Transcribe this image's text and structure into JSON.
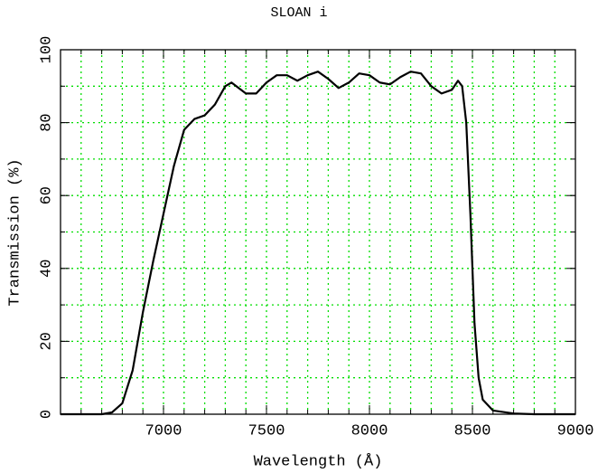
{
  "chart_data": {
    "type": "line",
    "title": "SLOAN i",
    "x_label": "Wavelength (Å)",
    "y_label": "Transmission (%)",
    "x": [
      6500,
      6700,
      6750,
      6800,
      6850,
      6900,
      6950,
      7000,
      7050,
      7100,
      7150,
      7200,
      7250,
      7300,
      7330,
      7400,
      7450,
      7500,
      7550,
      7600,
      7650,
      7700,
      7750,
      7800,
      7850,
      7900,
      7950,
      8000,
      8050,
      8100,
      8150,
      8200,
      8250,
      8300,
      8350,
      8400,
      8430,
      8450,
      8470,
      8490,
      8510,
      8530,
      8550,
      8600,
      8700,
      8800,
      9000
    ],
    "series": [
      {
        "name": "SLOAN i",
        "color": "#000000",
        "values": [
          0,
          0,
          0.5,
          3,
          12,
          28,
          42,
          55,
          68,
          78,
          81,
          82,
          85,
          90,
          91,
          88,
          88,
          91,
          93,
          93,
          91.5,
          93,
          94,
          92,
          89.5,
          91,
          93.5,
          93,
          91,
          90.5,
          92.5,
          94,
          93.5,
          90,
          88,
          89,
          91.5,
          90,
          80,
          55,
          25,
          10,
          4,
          1,
          0.2,
          0,
          0
        ]
      }
    ],
    "xlim": [
      6500,
      9000
    ],
    "ylim": [
      0,
      100
    ],
    "xticks": [
      7000,
      7500,
      8000,
      8500,
      9000
    ],
    "yticks": [
      0,
      20,
      40,
      60,
      80,
      100
    ],
    "minor_xticks": [
      6600,
      6700,
      6800,
      6900,
      7000,
      7100,
      7200,
      7300,
      7400,
      7500,
      7600,
      7700,
      7800,
      7900,
      8000,
      8100,
      8200,
      8300,
      8400,
      8500,
      8600,
      8700,
      8800,
      8900
    ],
    "minor_yticks": [
      10,
      20,
      30,
      40,
      50,
      60,
      70,
      80,
      90
    ],
    "grid": true,
    "grid_color": "#00dd00"
  }
}
